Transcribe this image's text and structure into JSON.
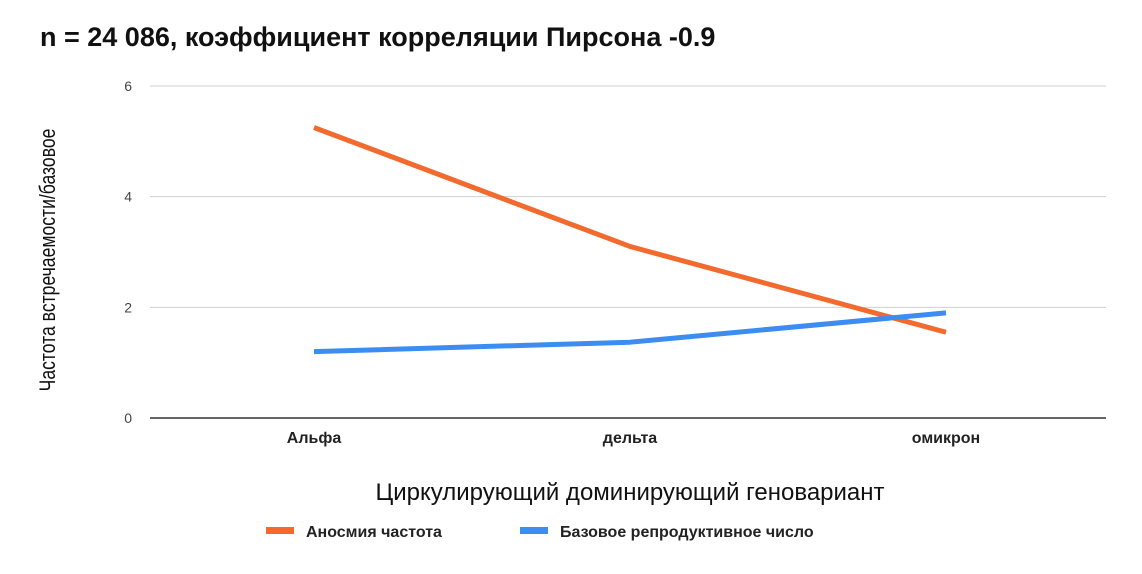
{
  "chart_data": {
    "type": "line",
    "title": "n = 24 086, коэффициент корреляции Пирсона -0.9",
    "xlabel": "Циркулирующий доминирующий геновариант",
    "ylabel": "Частота встречаемости/базовое",
    "categories": [
      "Альфа",
      "дельта",
      "омикрон"
    ],
    "series": [
      {
        "name": "Аносмия частота",
        "values": [
          5.25,
          3.1,
          1.55
        ],
        "color": "#f26a2e"
      },
      {
        "name": "Базовое репродуктивное число",
        "values": [
          1.2,
          1.37,
          1.9
        ],
        "color": "#3d8cf0"
      }
    ],
    "ylim": [
      0,
      6
    ],
    "yticks": [
      0,
      2,
      4,
      6
    ],
    "grid": true,
    "legend": "bottom"
  }
}
